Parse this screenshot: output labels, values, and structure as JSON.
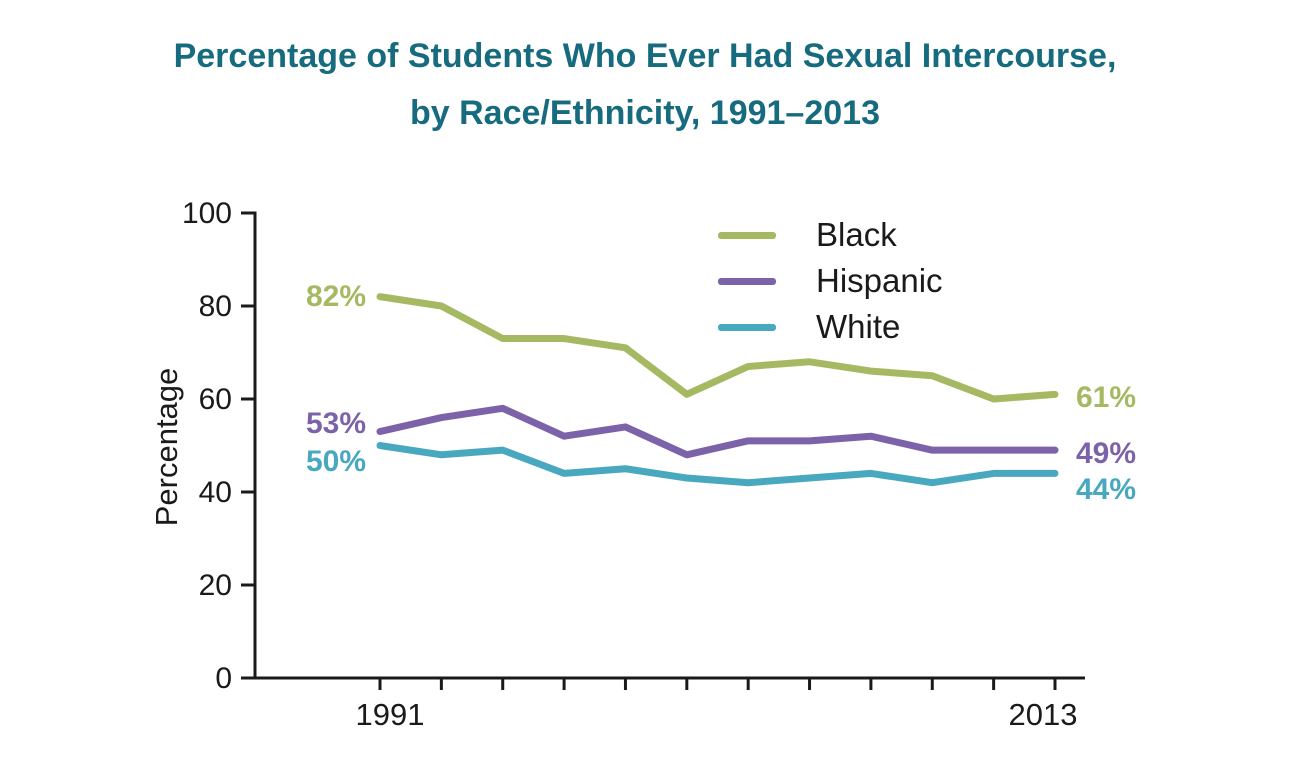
{
  "title": {
    "line1": "Percentage of Students Who Ever Had Sexual Intercourse,",
    "line2": "by Race/Ethnicity, 1991–2013"
  },
  "colors": {
    "title": "#176b7f",
    "axis": "#1a1a1a",
    "text": "#1a1a1a"
  },
  "chart_data": {
    "type": "line",
    "title": "Percentage of Students Who Ever Had Sexual Intercourse, by Race/Ethnicity, 1991–2013",
    "xlabel": "",
    "ylabel": "Percentage",
    "ylim": [
      0,
      100
    ],
    "y_ticks": [
      0,
      20,
      40,
      60,
      80,
      100
    ],
    "x": [
      1991,
      1993,
      1995,
      1997,
      1999,
      2001,
      2003,
      2005,
      2007,
      2009,
      2011,
      2013
    ],
    "x_axis_labels": [
      "1991",
      "2013"
    ],
    "grid": false,
    "legend_position": "top-right-inside",
    "series": [
      {
        "name": "Black",
        "color": "#a4b962",
        "values": [
          82,
          80,
          73,
          73,
          71,
          61,
          67,
          68,
          66,
          65,
          60,
          61
        ],
        "start_label": "82%",
        "end_label": "61%"
      },
      {
        "name": "Hispanic",
        "color": "#7c62a8",
        "values": [
          53,
          56,
          58,
          52,
          54,
          48,
          51,
          51,
          52,
          49,
          49,
          49
        ],
        "start_label": "53%",
        "end_label": "49%"
      },
      {
        "name": "White",
        "color": "#48a8bf",
        "values": [
          50,
          48,
          49,
          44,
          45,
          43,
          42,
          43,
          44,
          42,
          44,
          44
        ],
        "start_label": "50%",
        "end_label": "44%"
      }
    ]
  }
}
